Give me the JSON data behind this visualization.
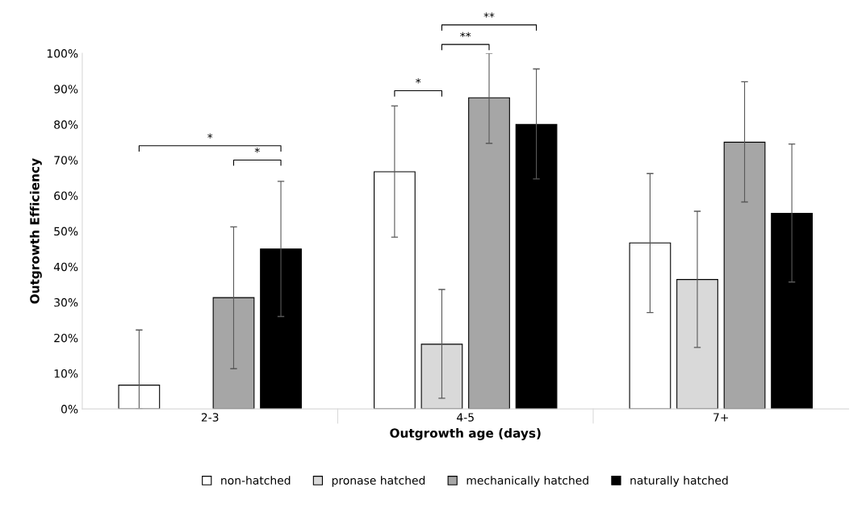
{
  "chart_data": {
    "type": "bar",
    "xlabel": "Outgrowth age (days)",
    "ylabel": "Outgrowth Efficiency",
    "categories": [
      "2-3",
      "4-5",
      "7+"
    ],
    "series": [
      {
        "name": "non-hatched",
        "color": "#ffffff",
        "values": [
          6.7,
          66.7,
          46.7
        ],
        "errors": [
          [
            0,
            22.2
          ],
          [
            48.3,
            85.2
          ],
          [
            27.1,
            66.2
          ]
        ]
      },
      {
        "name": "pronase hatched",
        "color": "#d9d9d9",
        "values": [
          0,
          18.2,
          36.4
        ],
        "errors": [
          null,
          [
            3,
            33.6
          ],
          [
            17.3,
            55.6
          ]
        ]
      },
      {
        "name": "mechanically hatched",
        "color": "#a6a6a6",
        "values": [
          31.3,
          87.5,
          75
        ],
        "errors": [
          [
            11.3,
            51.2
          ],
          [
            74.7,
            100
          ],
          [
            58.2,
            92
          ]
        ]
      },
      {
        "name": "naturally hatched",
        "color": "#000000",
        "values": [
          45,
          80,
          55
        ],
        "errors": [
          [
            26,
            64
          ],
          [
            64.7,
            95.6
          ],
          [
            35.7,
            74.5
          ]
        ]
      }
    ],
    "ylim": [
      0,
      100
    ],
    "yticks": [
      {
        "value": 0,
        "label": "0%"
      },
      {
        "value": 10,
        "label": "10%"
      },
      {
        "value": 20,
        "label": "20%"
      },
      {
        "value": 30,
        "label": "30%"
      },
      {
        "value": 40,
        "label": "40%"
      },
      {
        "value": 50,
        "label": "50%"
      },
      {
        "value": 60,
        "label": "60%"
      },
      {
        "value": 70,
        "label": "70%"
      },
      {
        "value": 80,
        "label": "80%"
      },
      {
        "value": 90,
        "label": "90%"
      },
      {
        "value": 100,
        "label": "100%"
      }
    ],
    "grid": false,
    "legend": "bottom",
    "annotations": [
      "*",
      "*",
      "*",
      "**",
      "**"
    ]
  }
}
